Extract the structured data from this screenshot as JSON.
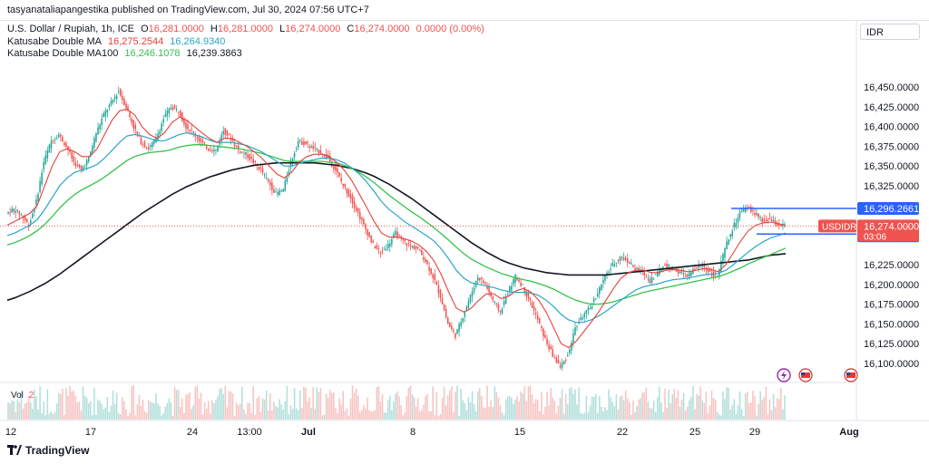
{
  "publisher_line": "tasyanataliapangestika published on TradingView.com, Jul 30, 2024 07:56 UTC+7",
  "symbol_line": {
    "name": "U.S. Dollar / Rupiah, 1h, ICE",
    "o_label": "O",
    "o": "16,281.0000",
    "h_label": "H",
    "h": "16,281.0000",
    "l_label": "L",
    "l": "16,274.0000",
    "c_label": "C",
    "c": "16,274.0000",
    "change": "0.0000 (0.00%)"
  },
  "indicators": [
    {
      "name": "Katusabe Double MA",
      "v1": "16,275.2544",
      "v2": "16,264.9340",
      "c1": "#e5423c",
      "c2": "#2aa5c9"
    },
    {
      "name": "Katusabe Double MA100",
      "v1": "16,246.1078",
      "v2": "16,239.3863",
      "c1": "#33c24a",
      "c2": "#131722"
    }
  ],
  "currency": "IDR",
  "brand": "TradingView",
  "price_tags": {
    "upper": "16,296.2661",
    "symbol": "USDIDR",
    "current": "16,274.0000",
    "countdown": "03:06",
    "lower": "16,263.8377"
  },
  "volume_label": "Vol",
  "volume_value": "2",
  "colors": {
    "up": "#26a69a",
    "down": "#ef5350",
    "ma_fast": "#e5423c",
    "ma_slow": "#2aa5c9",
    "ma100_fast": "#33c24a",
    "ma100_slow": "#131722",
    "level_line": "#2962ff",
    "current_line": "#ef5350"
  },
  "chart_data": {
    "type": "candlestick",
    "y_ticks": [
      "16,450.0000",
      "16,425.0000",
      "16,400.0000",
      "16,375.0000",
      "16,350.0000",
      "16,325.0000",
      "16,225.0000",
      "16,200.0000",
      "16,175.0000",
      "16,150.0000",
      "16,125.0000",
      "16,100.0000"
    ],
    "x_ticks": [
      "12",
      "17",
      "24",
      "13:00",
      "Jul",
      "8",
      "15",
      "22",
      "25",
      "29",
      "Aug"
    ],
    "ylim": [
      16085,
      16480
    ],
    "horizontal_levels": [
      16296.2661,
      16263.8377
    ],
    "current_price": 16274.0,
    "price_path": [
      16290,
      16295,
      16288,
      16275,
      16305,
      16355,
      16382,
      16390,
      16375,
      16355,
      16345,
      16360,
      16392,
      16415,
      16430,
      16445,
      16425,
      16400,
      16380,
      16372,
      16385,
      16410,
      16425,
      16420,
      16400,
      16392,
      16380,
      16372,
      16370,
      16395,
      16385,
      16370,
      16365,
      16355,
      16345,
      16330,
      16315,
      16320,
      16355,
      16382,
      16378,
      16372,
      16368,
      16360,
      16345,
      16325,
      16310,
      16290,
      16270,
      16250,
      16240,
      16250,
      16265,
      16255,
      16248,
      16245,
      16230,
      16210,
      16185,
      16150,
      16135,
      16160,
      16185,
      16210,
      16200,
      16180,
      16165,
      16190,
      16210,
      16198,
      16178,
      16155,
      16130,
      16110,
      16095,
      16110,
      16145,
      16160,
      16170,
      16190,
      16210,
      16225,
      16235,
      16230,
      16220,
      16215,
      16205,
      16215,
      16225,
      16220,
      16215,
      16210,
      16220,
      16225,
      16215,
      16210,
      16245,
      16270,
      16290,
      16298,
      16290,
      16280,
      16282,
      16276,
      16274
    ],
    "ma_fast_path": [
      16275,
      16280,
      16285,
      16290,
      16300,
      16325,
      16350,
      16368,
      16372,
      16368,
      16362,
      16362,
      16372,
      16390,
      16408,
      16420,
      16422,
      16415,
      16400,
      16390,
      16385,
      16392,
      16405,
      16412,
      16408,
      16400,
      16392,
      16385,
      16380,
      16385,
      16385,
      16380,
      16375,
      16368,
      16360,
      16350,
      16340,
      16335,
      16342,
      16355,
      16362,
      16365,
      16365,
      16362,
      16355,
      16345,
      16332,
      16315,
      16298,
      16280,
      16265,
      16260,
      16260,
      16258,
      16255,
      16250,
      16242,
      16230,
      16212,
      16190,
      16170,
      16165,
      16170,
      16180,
      16188,
      16188,
      16182,
      16185,
      16192,
      16195,
      16190,
      16180,
      16165,
      16145,
      16125,
      16120,
      16128,
      16140,
      16152,
      16165,
      16180,
      16195,
      16208,
      16215,
      16218,
      16218,
      16215,
      16215,
      16218,
      16219,
      16218,
      16216,
      16218,
      16220,
      16219,
      16216,
      16225,
      16240,
      16255,
      16268,
      16275,
      16278,
      16279,
      16277,
      16275
    ],
    "ma_slow_path": [
      16262,
      16265,
      16270,
      16275,
      16282,
      16295,
      16310,
      16325,
      16335,
      16342,
      16345,
      16348,
      16352,
      16360,
      16370,
      16380,
      16388,
      16390,
      16388,
      16385,
      16382,
      16382,
      16386,
      16390,
      16392,
      16390,
      16387,
      16383,
      16380,
      16380,
      16380,
      16378,
      16376,
      16372,
      16368,
      16362,
      16356,
      16350,
      16350,
      16353,
      16356,
      16358,
      16360,
      16360,
      16358,
      16354,
      16348,
      16340,
      16330,
      16318,
      16305,
      16295,
      16288,
      16280,
      16274,
      16268,
      16262,
      16255,
      16245,
      16232,
      16218,
      16208,
      16202,
      16200,
      16198,
      16196,
      16193,
      16191,
      16190,
      16190,
      16189,
      16186,
      16180,
      16172,
      16162,
      16155,
      16152,
      16152,
      16155,
      16160,
      16166,
      16173,
      16180,
      16187,
      16193,
      16197,
      16199,
      16201,
      16204,
      16206,
      16207,
      16208,
      16210,
      16212,
      16213,
      16214,
      16218,
      16225,
      16233,
      16241,
      16248,
      16254,
      16259,
      16262,
      16265
    ],
    "ma100_fast_path": [
      16250,
      16253,
      16257,
      16262,
      16268,
      16276,
      16286,
      16297,
      16306,
      16314,
      16320,
      16325,
      16330,
      16336,
      16343,
      16350,
      16357,
      16362,
      16365,
      16367,
      16368,
      16369,
      16371,
      16374,
      16376,
      16377,
      16377,
      16376,
      16375,
      16374,
      16373,
      16372,
      16370,
      16368,
      16366,
      16363,
      16360,
      16357,
      16356,
      16356,
      16356,
      16356,
      16356,
      16355,
      16354,
      16351,
      16347,
      16342,
      16336,
      16329,
      16321,
      16313,
      16306,
      16299,
      16292,
      16286,
      16279,
      16272,
      16264,
      16256,
      16247,
      16239,
      16232,
      16227,
      16222,
      16218,
      16214,
      16211,
      16208,
      16206,
      16204,
      16201,
      16198,
      16194,
      16189,
      16184,
      16180,
      16177,
      16175,
      16175,
      16176,
      16178,
      16181,
      16184,
      16187,
      16190,
      16192,
      16194,
      16196,
      16198,
      16200,
      16202,
      16204,
      16206,
      16208,
      16210,
      16213,
      16217,
      16221,
      16226,
      16230,
      16234,
      16238,
      16242,
      16246
    ],
    "ma100_slow_path": [
      16180,
      16183,
      16187,
      16191,
      16196,
      16201,
      16207,
      16213,
      16220,
      16227,
      16234,
      16241,
      16248,
      16255,
      16262,
      16269,
      16276,
      16283,
      16290,
      16296,
      16302,
      16308,
      16314,
      16319,
      16324,
      16328,
      16332,
      16336,
      16339,
      16342,
      16345,
      16347,
      16349,
      16351,
      16352,
      16353,
      16354,
      16354,
      16354,
      16354,
      16354,
      16354,
      16353,
      16352,
      16351,
      16349,
      16347,
      16344,
      16341,
      16337,
      16332,
      16327,
      16321,
      16315,
      16309,
      16302,
      16295,
      16288,
      16281,
      16274,
      16267,
      16260,
      16253,
      16247,
      16241,
      16236,
      16231,
      16227,
      16224,
      16221,
      16219,
      16217,
      16215,
      16214,
      16213,
      16212,
      16212,
      16212,
      16212,
      16212,
      16212,
      16213,
      16214,
      16215,
      16216,
      16217,
      16218,
      16219,
      16220,
      16221,
      16222,
      16223,
      16224,
      16225,
      16226,
      16227,
      16228,
      16229,
      16230,
      16231,
      16233,
      16235,
      16237,
      16238,
      16239
    ]
  }
}
